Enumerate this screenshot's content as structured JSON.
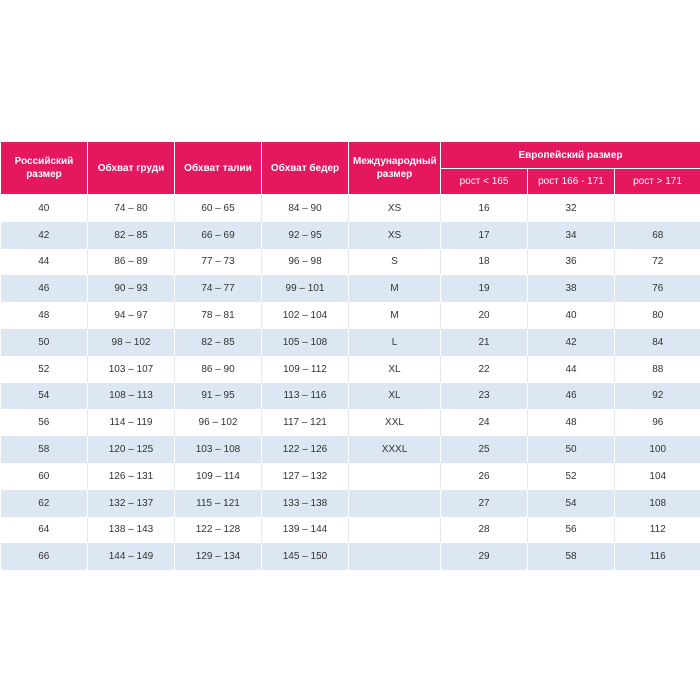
{
  "header": {
    "columns": [
      "Российский размер",
      "Обхват груди",
      "Обхват талии",
      "Обхват бедер",
      "Международный размер"
    ],
    "group": "Европейский размер",
    "subcolumns": [
      "рост < 165",
      "рост 166 - 171",
      "рост > 171"
    ]
  },
  "table": {
    "rows": [
      [
        40,
        "74 – 80",
        "60 – 65",
        "84 – 90",
        "XS",
        16,
        32,
        null
      ],
      [
        42,
        "82 – 85",
        "66 – 69",
        "92 – 95",
        "XS",
        17,
        34,
        68
      ],
      [
        44,
        "86 – 89",
        "77 – 73",
        "96 – 98",
        "S",
        18,
        36,
        72
      ],
      [
        46,
        "90 – 93",
        "74 – 77",
        "99 – 101",
        "M",
        19,
        38,
        76
      ],
      [
        48,
        "94 – 97",
        "78 – 81",
        "102 – 104",
        "M",
        20,
        40,
        80
      ],
      [
        50,
        "98 – 102",
        "82 – 85",
        "105 – 108",
        "L",
        21,
        42,
        84
      ],
      [
        52,
        "103 – 107",
        "86 – 90",
        "109 – 112",
        "XL",
        22,
        44,
        88
      ],
      [
        54,
        "108 – 113",
        "91 – 95",
        "113 – 116",
        "XL",
        23,
        46,
        92
      ],
      [
        56,
        "114 – 119",
        "96 – 102",
        "117 – 121",
        "XXL",
        24,
        48,
        96
      ],
      [
        58,
        "120 – 125",
        "103 – 108",
        "122 – 126",
        "XXXL",
        25,
        50,
        100
      ],
      [
        60,
        "126 – 131",
        "109 – 114",
        "127 – 132",
        null,
        26,
        52,
        104
      ],
      [
        62,
        "132 – 137",
        "115 – 121",
        "133 – 138",
        null,
        27,
        54,
        108
      ],
      [
        64,
        "138 – 143",
        "122 – 128",
        "139 – 144",
        null,
        28,
        56,
        112
      ],
      [
        66,
        "144 – 149",
        "129 – 134",
        "145 – 150",
        null,
        29,
        58,
        116
      ]
    ]
  }
}
